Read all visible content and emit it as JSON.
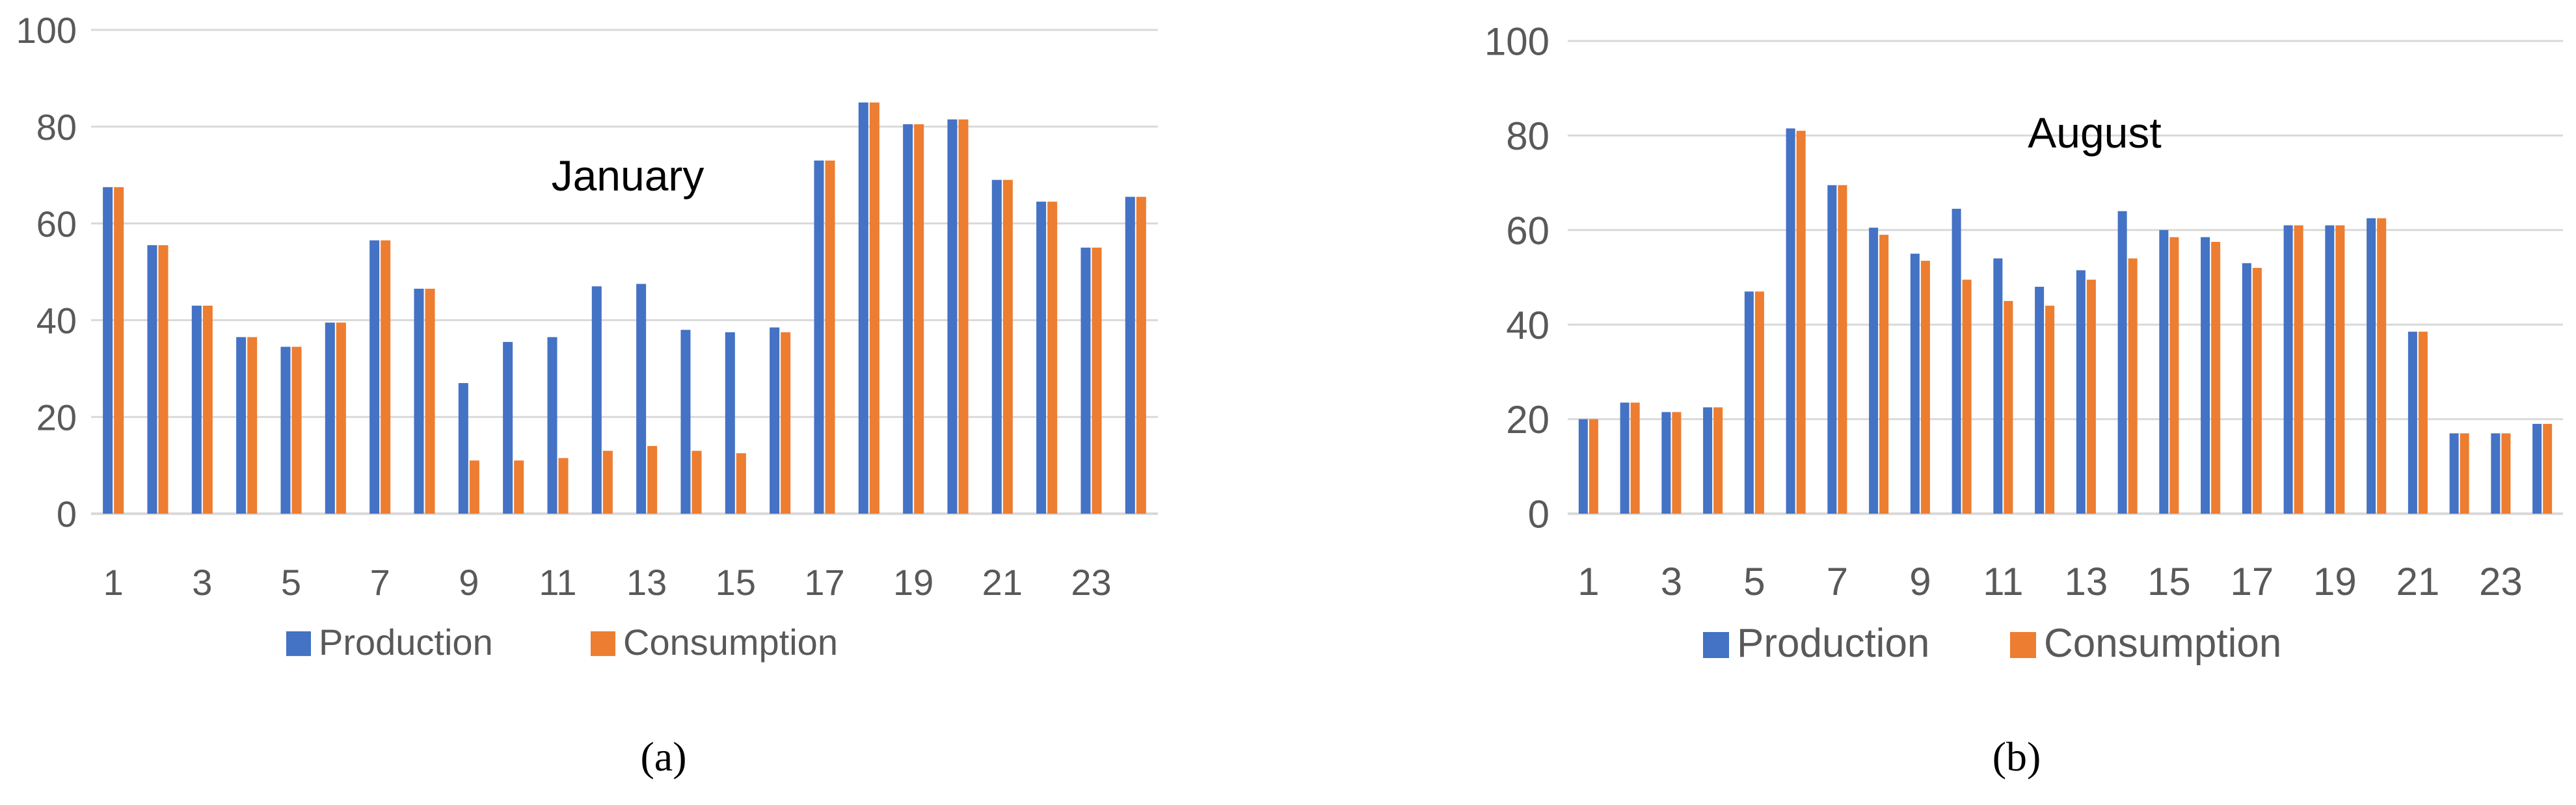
{
  "colors": {
    "production": "#4472C4",
    "consumption": "#ED7D31",
    "grid": "#D9D9D9",
    "axis_text": "#595959"
  },
  "chart_data": [
    {
      "type": "bar",
      "panel_label": "(a)",
      "annotation": "January",
      "categories": [
        1,
        2,
        3,
        4,
        5,
        6,
        7,
        8,
        9,
        10,
        11,
        12,
        13,
        14,
        15,
        16,
        17,
        18,
        19,
        20,
        21,
        22,
        23,
        24
      ],
      "x_tick_labels": [
        "1",
        "3",
        "5",
        "7",
        "9",
        "11",
        "13",
        "15",
        "17",
        "19",
        "21",
        "23"
      ],
      "ylim": [
        0,
        100
      ],
      "y_ticks": [
        0,
        20,
        40,
        60,
        80,
        100
      ],
      "grid": true,
      "legend": "bottom",
      "series": [
        {
          "name": "Production",
          "color": "#4472C4",
          "values": [
            67.5,
            55.5,
            43,
            36.5,
            34.5,
            39.5,
            56.5,
            46.5,
            27,
            35.5,
            36.5,
            47,
            47.5,
            38,
            37.5,
            38.5,
            73,
            85,
            80.5,
            81.5,
            69,
            64.5,
            55,
            65.5
          ]
        },
        {
          "name": "Consumption",
          "color": "#ED7D31",
          "values": [
            67.5,
            55.5,
            43,
            36.5,
            34.5,
            39.5,
            56.5,
            46.5,
            11,
            11,
            11.5,
            13,
            14,
            13,
            12.5,
            37.5,
            73,
            85,
            80.5,
            81.5,
            69,
            64.5,
            55,
            65.5
          ]
        }
      ]
    },
    {
      "type": "bar",
      "panel_label": "(b)",
      "annotation": "August",
      "categories": [
        1,
        2,
        3,
        4,
        5,
        6,
        7,
        8,
        9,
        10,
        11,
        12,
        13,
        14,
        15,
        16,
        17,
        18,
        19,
        20,
        21,
        22,
        23,
        24
      ],
      "x_tick_labels": [
        "1",
        "3",
        "5",
        "7",
        "9",
        "11",
        "13",
        "15",
        "17",
        "19",
        "21",
        "23"
      ],
      "ylim": [
        0,
        100
      ],
      "y_ticks": [
        0,
        20,
        40,
        60,
        80,
        100
      ],
      "grid": true,
      "legend": "bottom",
      "series": [
        {
          "name": "Production",
          "color": "#4472C4",
          "values": [
            20,
            23.5,
            21.5,
            22.5,
            47,
            81.5,
            69.5,
            60.5,
            55,
            64.5,
            54,
            48,
            51.5,
            64,
            60,
            58.5,
            53,
            61,
            61,
            62.5,
            38.5,
            17,
            17,
            19
          ]
        },
        {
          "name": "Consumption",
          "color": "#ED7D31",
          "values": [
            20,
            23.5,
            21.5,
            22.5,
            47,
            81,
            69.5,
            59,
            53.5,
            49.5,
            45,
            44,
            49.5,
            54,
            58.5,
            57.5,
            52,
            61,
            61,
            62.5,
            38.5,
            17,
            17,
            19
          ]
        }
      ]
    }
  ]
}
